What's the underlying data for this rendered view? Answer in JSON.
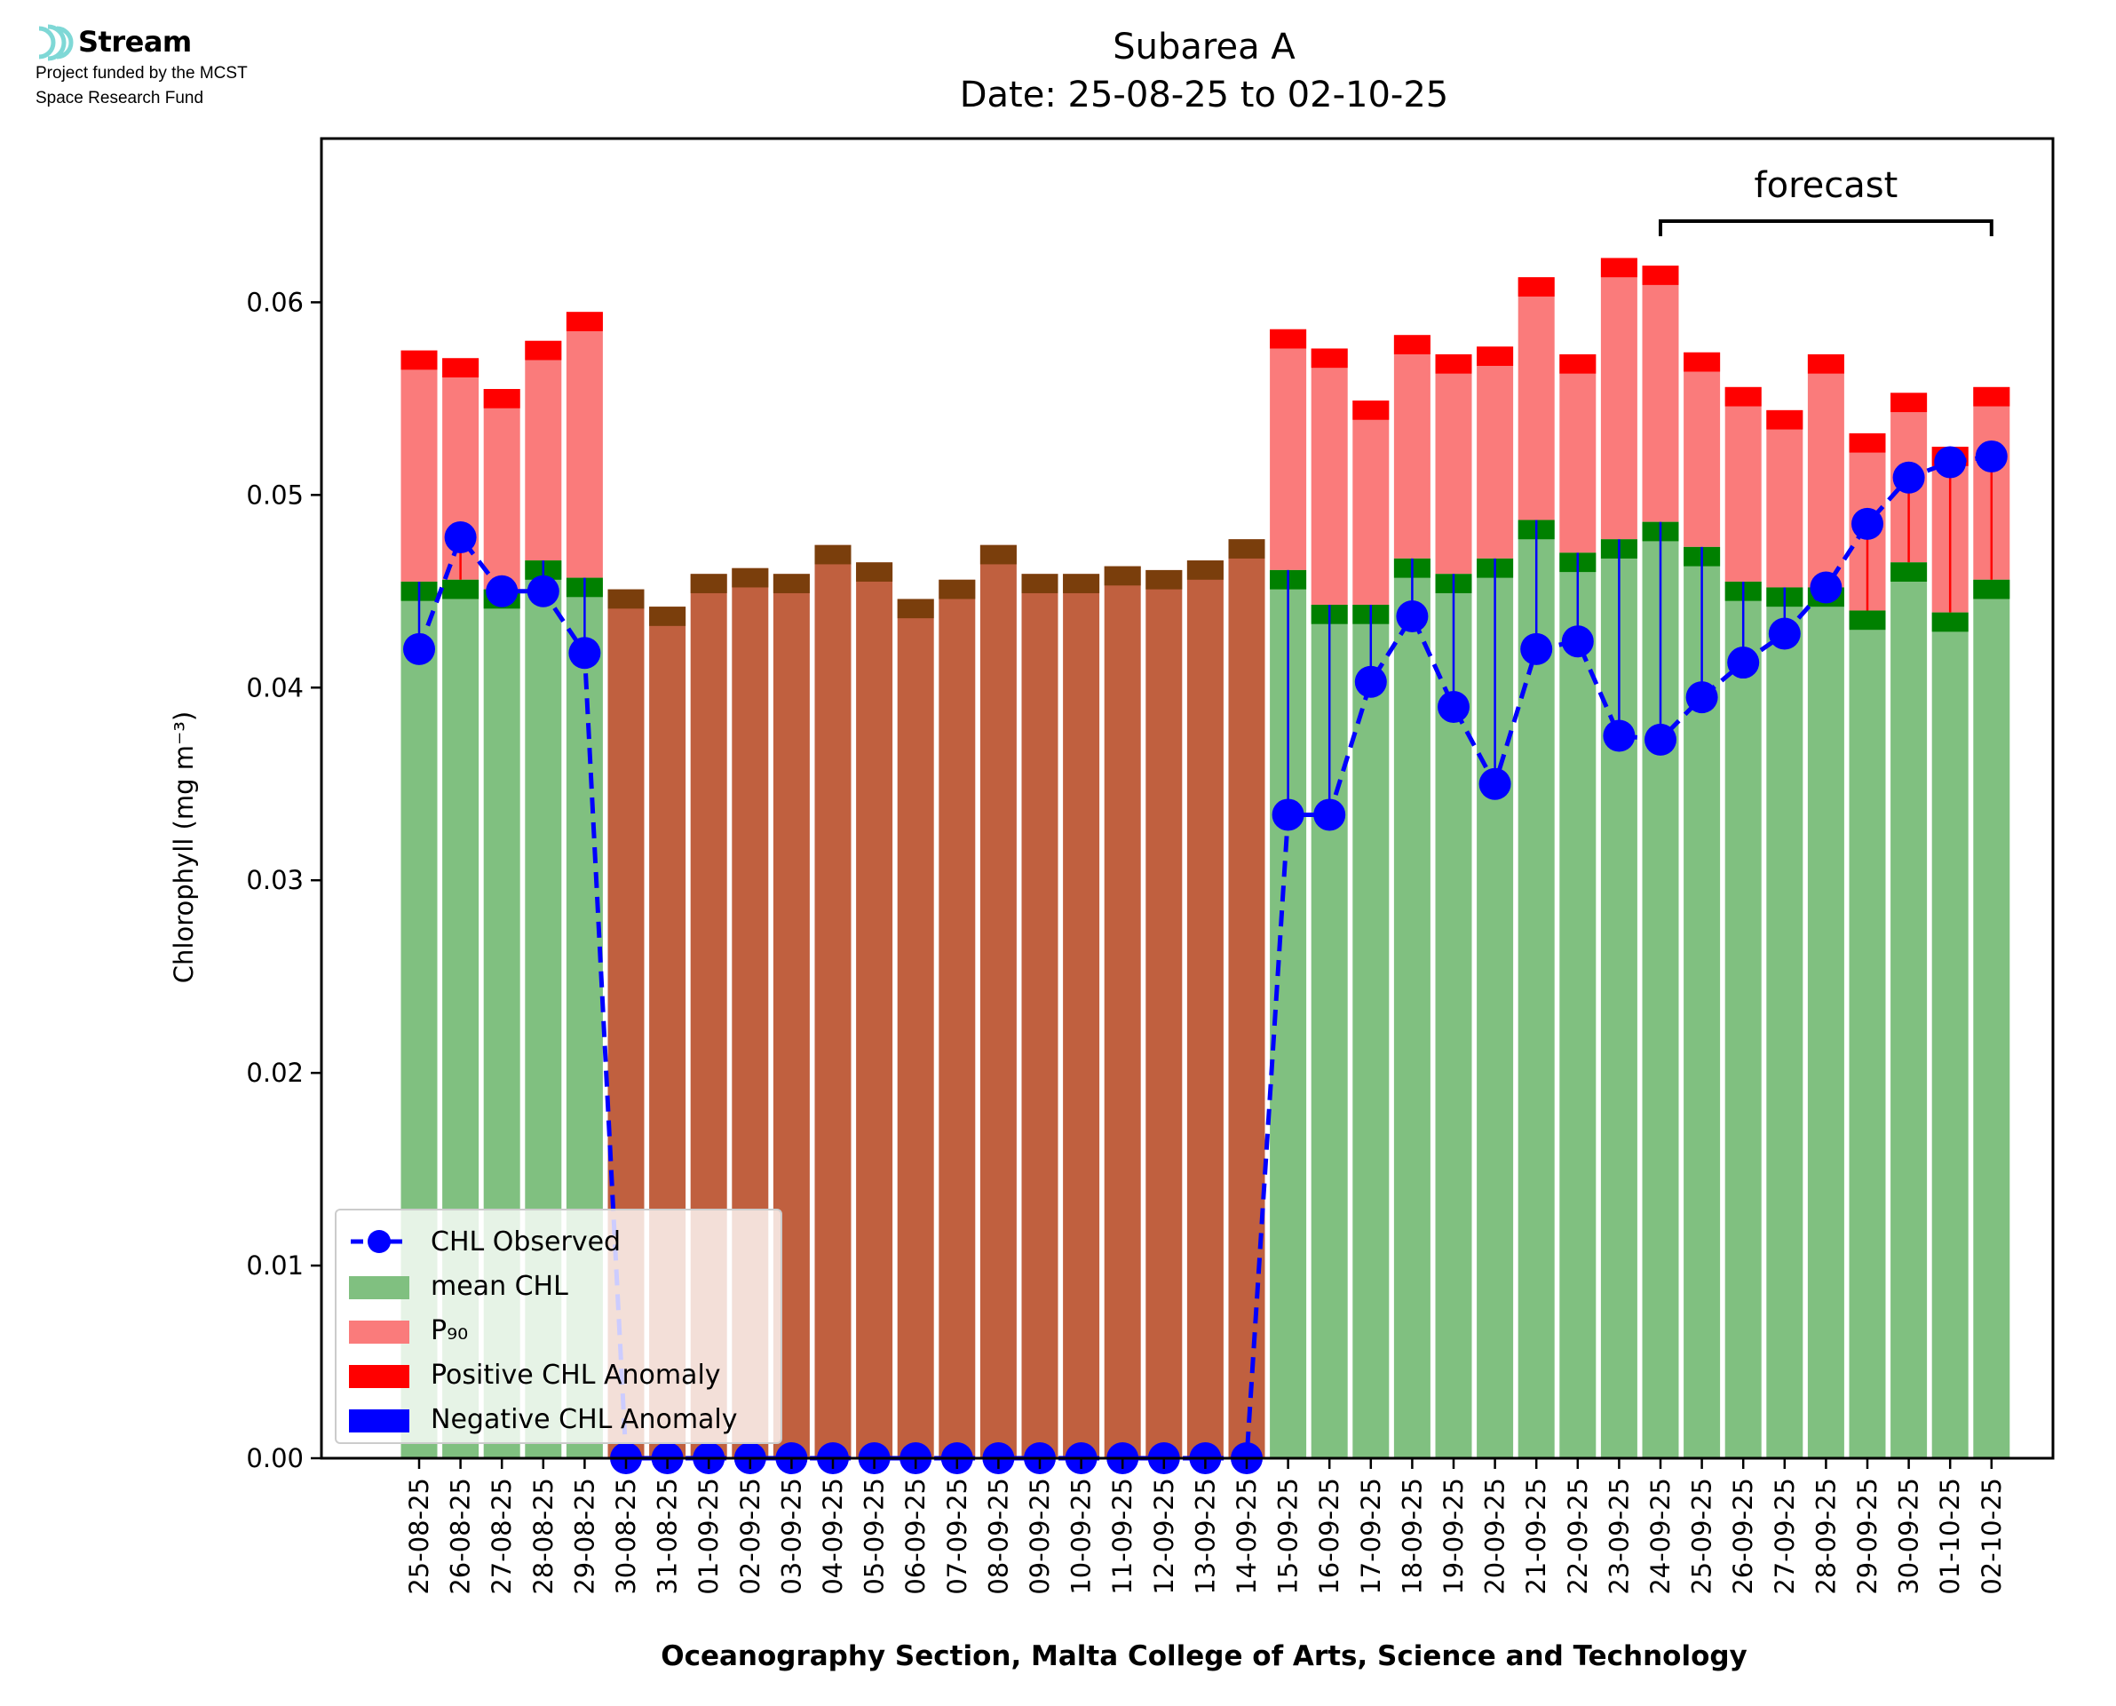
{
  "logo": {
    "name": "Stream",
    "line1": "Project funded by the MCST",
    "line2": "Space Research Fund",
    "color": "#7fd8d6"
  },
  "chart_data": {
    "type": "bar",
    "title": "Subarea A",
    "subtitle": "Date: 25-08-25 to 02-10-25",
    "xlabel": "Oceanography Section, Malta College of Arts, Science and Technology",
    "ylabel": "Chlorophyll (mg m⁻³)",
    "ylim": [
      0,
      0.0685
    ],
    "yticks": [
      "0.00",
      "0.01",
      "0.02",
      "0.03",
      "0.04",
      "0.05",
      "0.06"
    ],
    "ytick_values": [
      0,
      0.01,
      0.02,
      0.03,
      0.04,
      0.05,
      0.06
    ],
    "forecast_label": "forecast",
    "forecast_start": "24-09-25",
    "forecast_end": "02-10-25",
    "categories": [
      "25-08-25",
      "26-08-25",
      "27-08-25",
      "28-08-25",
      "29-08-25",
      "30-08-25",
      "31-08-25",
      "01-09-25",
      "02-09-25",
      "03-09-25",
      "04-09-25",
      "05-09-25",
      "06-09-25",
      "07-09-25",
      "08-09-25",
      "09-09-25",
      "10-09-25",
      "11-09-25",
      "12-09-25",
      "13-09-25",
      "14-09-25",
      "15-09-25",
      "16-09-25",
      "17-09-25",
      "18-09-25",
      "19-09-25",
      "20-09-25",
      "21-09-25",
      "22-09-25",
      "23-09-25",
      "24-09-25",
      "25-09-25",
      "26-09-25",
      "27-09-25",
      "28-09-25",
      "29-09-25",
      "30-09-25",
      "01-10-25",
      "02-10-25"
    ],
    "has_data": [
      true,
      true,
      true,
      true,
      true,
      false,
      false,
      false,
      false,
      false,
      false,
      false,
      false,
      false,
      false,
      false,
      false,
      false,
      false,
      false,
      false,
      true,
      true,
      true,
      true,
      true,
      true,
      true,
      true,
      true,
      true,
      true,
      true,
      true,
      true,
      true,
      true,
      true,
      true
    ],
    "series": [
      {
        "name": "mean CHL",
        "color": "#80c080",
        "values": [
          0.0455,
          0.0456,
          0.0451,
          0.0466,
          0.0457,
          0.0451,
          0.0442,
          0.0459,
          0.0462,
          0.0459,
          0.0474,
          0.0465,
          0.0446,
          0.0456,
          0.0474,
          0.0459,
          0.0459,
          0.0463,
          0.0461,
          0.0466,
          0.0477,
          0.0461,
          0.0443,
          0.0443,
          0.0467,
          0.0459,
          0.0467,
          0.0487,
          0.047,
          0.0477,
          0.0486,
          0.0473,
          0.0455,
          0.0452,
          0.0452,
          0.044,
          0.0465,
          0.0439,
          0.0456
        ]
      },
      {
        "name": "P₉₀",
        "color": "#fa7b7b",
        "values": [
          0.0575,
          0.0571,
          0.0555,
          0.058,
          0.0595,
          0.0451,
          0.0442,
          0.0459,
          0.0462,
          0.0459,
          0.0474,
          0.0465,
          0.0446,
          0.0456,
          0.0474,
          0.0459,
          0.0459,
          0.0463,
          0.0461,
          0.0466,
          0.0477,
          0.0586,
          0.0576,
          0.0549,
          0.0583,
          0.0573,
          0.0577,
          0.0613,
          0.0573,
          0.0623,
          0.0619,
          0.0574,
          0.0556,
          0.0544,
          0.0573,
          0.0532,
          0.0553,
          0.0525,
          0.0556
        ]
      },
      {
        "name": "CHL Observed",
        "color": "#0000ff",
        "values": [
          0.042,
          0.0478,
          0.045,
          0.045,
          0.0418,
          0,
          0,
          0,
          0,
          0,
          0,
          0,
          0,
          0,
          0,
          0,
          0,
          0,
          0,
          0,
          0,
          0.0334,
          0.0334,
          0.0403,
          0.0437,
          0.039,
          0.035,
          0.042,
          0.0424,
          0.0375,
          0.0373,
          0.0395,
          0.0413,
          0.0428,
          0.0452,
          0.0485,
          0.0509,
          0.0517,
          0.052
        ]
      }
    ],
    "legend_position": "lower-left",
    "legend": [
      {
        "label": "CHL Observed",
        "kind": "line-marker",
        "color": "#0000ff"
      },
      {
        "label": "mean CHL",
        "kind": "patch",
        "color": "#80c080"
      },
      {
        "label": "P₉₀",
        "kind": "patch",
        "color": "#fa7b7b"
      },
      {
        "label": "Positive CHL Anomaly",
        "kind": "patch",
        "color": "#ff0000"
      },
      {
        "label": "Negative CHL Anomaly",
        "kind": "patch",
        "color": "#0000ff"
      }
    ],
    "colors": {
      "mean_band": "#008000",
      "p90_band": "#ff0000",
      "nodata_bar": "#c0603f",
      "nodata_band": "#7a3e0c",
      "positive_anomaly": "#ff0000",
      "negative_anomaly": "#0000ff"
    }
  }
}
